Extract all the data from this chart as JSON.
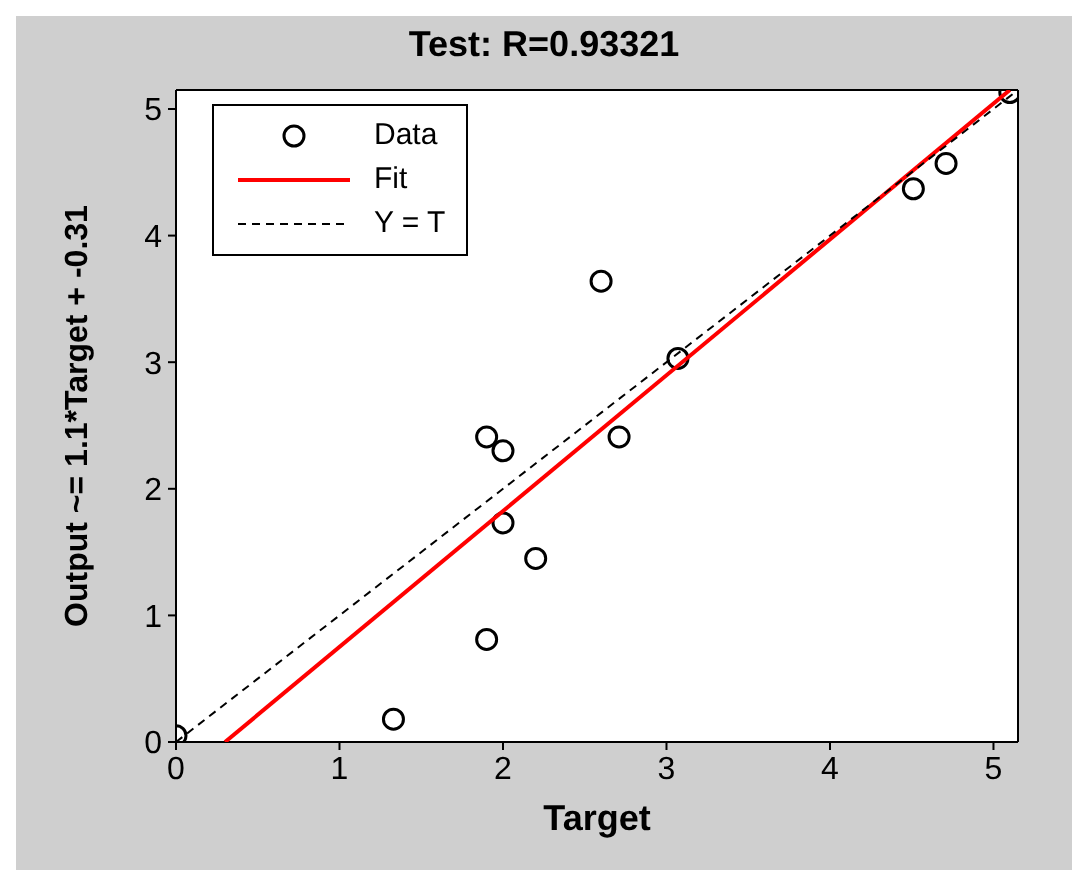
{
  "chart_data": {
    "type": "scatter",
    "title": "Test: R=0.93321",
    "xlabel": "Target",
    "ylabel": "Output ~= 1.1*Target + -0.31",
    "xlim": [
      0,
      5.15
    ],
    "ylim": [
      0,
      5.15
    ],
    "xticks": [
      0,
      1,
      2,
      3,
      4,
      5
    ],
    "yticks": [
      0,
      1,
      2,
      3,
      4,
      5
    ],
    "grid": false,
    "legend": "top left",
    "series": [
      {
        "name": "Data",
        "marker": "circle",
        "color": "#000000",
        "x": [
          0,
          1.33,
          1.9,
          1.9,
          2.0,
          2.0,
          2.2,
          2.6,
          2.71,
          3.07,
          4.51,
          4.71,
          5.1
        ],
        "values": [
          0.05,
          0.18,
          0.81,
          2.41,
          2.3,
          1.73,
          1.45,
          3.64,
          2.41,
          3.03,
          4.37,
          4.57,
          5.13
        ]
      },
      {
        "name": "Fit",
        "type": "line",
        "color": "#ff0000",
        "x": [
          0.3,
          5.1
        ],
        "values": [
          0,
          5.15
        ]
      },
      {
        "name": "Y = T",
        "type": "line",
        "line_style": "dashed",
        "color": "#000000",
        "x": [
          0,
          5.15
        ],
        "values": [
          0,
          5.15
        ]
      }
    ]
  }
}
